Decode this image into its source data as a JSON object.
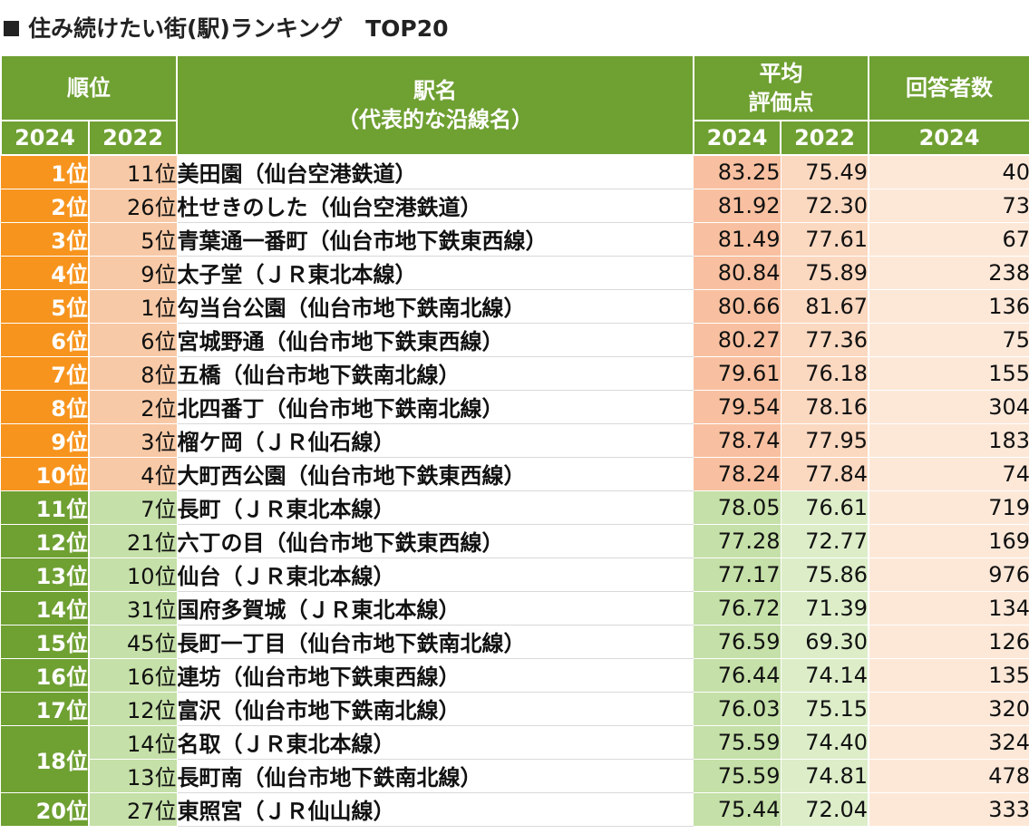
{
  "title": "住み続けたい街(駅)ランキング　TOP20",
  "colors": {
    "header_green": "#6fa032",
    "top_rank_orange": "#f7941d",
    "top_light_orange": "#f8c9a6",
    "light_green": "#c5e0a8",
    "count_bg": "#fde8d8"
  },
  "header": {
    "rank_group": "順位",
    "station_line1": "駅名",
    "station_line2": "（代表的な沿線名）",
    "score_line1": "平均",
    "score_line2": "評価点",
    "count": "回答者数",
    "y2024": "2024",
    "y2022": "2022"
  },
  "rows": [
    {
      "rank2024": "1位",
      "rank2022": "11位",
      "station": "美田園（仙台空港鉄道）",
      "score2024": "83.25",
      "score2022": "75.49",
      "count": "40"
    },
    {
      "rank2024": "2位",
      "rank2022": "26位",
      "station": "杜せきのした（仙台空港鉄道）",
      "score2024": "81.92",
      "score2022": "72.30",
      "count": "73"
    },
    {
      "rank2024": "3位",
      "rank2022": "5位",
      "station": "青葉通一番町（仙台市地下鉄東西線）",
      "score2024": "81.49",
      "score2022": "77.61",
      "count": "67"
    },
    {
      "rank2024": "4位",
      "rank2022": "9位",
      "station": "太子堂（ＪＲ東北本線）",
      "score2024": "80.84",
      "score2022": "75.89",
      "count": "238"
    },
    {
      "rank2024": "5位",
      "rank2022": "1位",
      "station": "勾当台公園（仙台市地下鉄南北線）",
      "score2024": "80.66",
      "score2022": "81.67",
      "count": "136"
    },
    {
      "rank2024": "6位",
      "rank2022": "6位",
      "station": "宮城野通（仙台市地下鉄東西線）",
      "score2024": "80.27",
      "score2022": "77.36",
      "count": "75"
    },
    {
      "rank2024": "7位",
      "rank2022": "8位",
      "station": "五橋（仙台市地下鉄南北線）",
      "score2024": "79.61",
      "score2022": "76.18",
      "count": "155"
    },
    {
      "rank2024": "8位",
      "rank2022": "2位",
      "station": "北四番丁（仙台市地下鉄南北線）",
      "score2024": "79.54",
      "score2022": "78.16",
      "count": "304"
    },
    {
      "rank2024": "9位",
      "rank2022": "3位",
      "station": "榴ケ岡（ＪＲ仙石線）",
      "score2024": "78.74",
      "score2022": "77.95",
      "count": "183"
    },
    {
      "rank2024": "10位",
      "rank2022": "4位",
      "station": "大町西公園（仙台市地下鉄東西線）",
      "score2024": "78.24",
      "score2022": "77.84",
      "count": "74"
    },
    {
      "rank2024": "11位",
      "rank2022": "7位",
      "station": "長町（ＪＲ東北本線）",
      "score2024": "78.05",
      "score2022": "76.61",
      "count": "719"
    },
    {
      "rank2024": "12位",
      "rank2022": "21位",
      "station": "六丁の目（仙台市地下鉄東西線）",
      "score2024": "77.28",
      "score2022": "72.77",
      "count": "169"
    },
    {
      "rank2024": "13位",
      "rank2022": "10位",
      "station": "仙台（ＪＲ東北本線）",
      "score2024": "77.17",
      "score2022": "75.86",
      "count": "976"
    },
    {
      "rank2024": "14位",
      "rank2022": "31位",
      "station": "国府多賀城（ＪＲ東北本線）",
      "score2024": "76.72",
      "score2022": "71.39",
      "count": "134"
    },
    {
      "rank2024": "15位",
      "rank2022": "45位",
      "station": "長町一丁目（仙台市地下鉄南北線）",
      "score2024": "76.59",
      "score2022": "69.30",
      "count": "126"
    },
    {
      "rank2024": "16位",
      "rank2022": "16位",
      "station": "連坊（仙台市地下鉄東西線）",
      "score2024": "76.44",
      "score2022": "74.14",
      "count": "135"
    },
    {
      "rank2024": "17位",
      "rank2022": "12位",
      "station": "富沢（仙台市地下鉄南北線）",
      "score2024": "76.03",
      "score2022": "75.15",
      "count": "320"
    },
    {
      "rank2024": "18位",
      "rank2022": "14位",
      "station": "名取（ＪＲ東北本線）",
      "score2024": "75.59",
      "score2022": "74.40",
      "count": "324"
    },
    {
      "rank2024": "",
      "rank2022": "13位",
      "station": "長町南（仙台市地下鉄南北線）",
      "score2024": "75.59",
      "score2022": "74.81",
      "count": "478"
    },
    {
      "rank2024": "20位",
      "rank2022": "27位",
      "station": "東照宮（ＪＲ仙山線）",
      "score2024": "75.44",
      "score2022": "72.04",
      "count": "333"
    }
  ]
}
